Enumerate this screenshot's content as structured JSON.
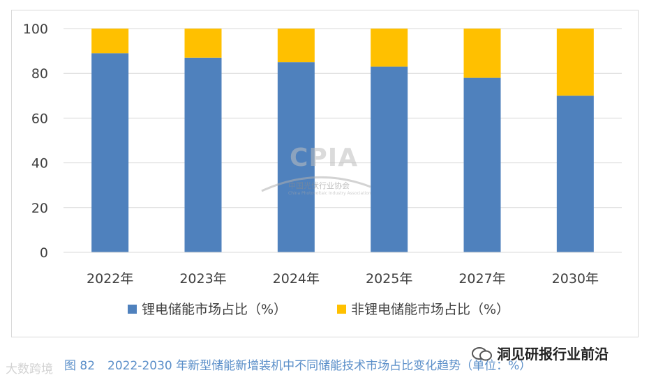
{
  "chart_data": {
    "type": "bar",
    "stacked": true,
    "categories": [
      "2022年",
      "2023年",
      "2024年",
      "2025年",
      "2027年",
      "2030年"
    ],
    "series": [
      {
        "name": "锂电储能市场占比（%）",
        "values": [
          89,
          87,
          85,
          83,
          78,
          70
        ],
        "color": "#4f81bd"
      },
      {
        "name": "非锂电储能市场占比（%）",
        "values": [
          11,
          13,
          15,
          17,
          22,
          30
        ],
        "color": "#ffc000"
      }
    ],
    "ylim": [
      0,
      100
    ],
    "yticks": [
      0,
      20,
      40,
      60,
      80,
      100
    ],
    "grid": true,
    "legend_position": "bottom",
    "xlabel": "",
    "ylabel": ""
  },
  "caption": {
    "figure_no": "图 82",
    "text": "2022-2030 年新型储能新增装机中不同储能技术市场占比变化趋势（单位：%）"
  },
  "watermarks": {
    "cpia_logo": "CPIA",
    "cpia_cn": "中国光伏行业协会",
    "cpia_en": "China Photovoltaic Industry Association",
    "bottom_left": "大数跨境",
    "bottom_right": "洞见研报行业前沿"
  }
}
